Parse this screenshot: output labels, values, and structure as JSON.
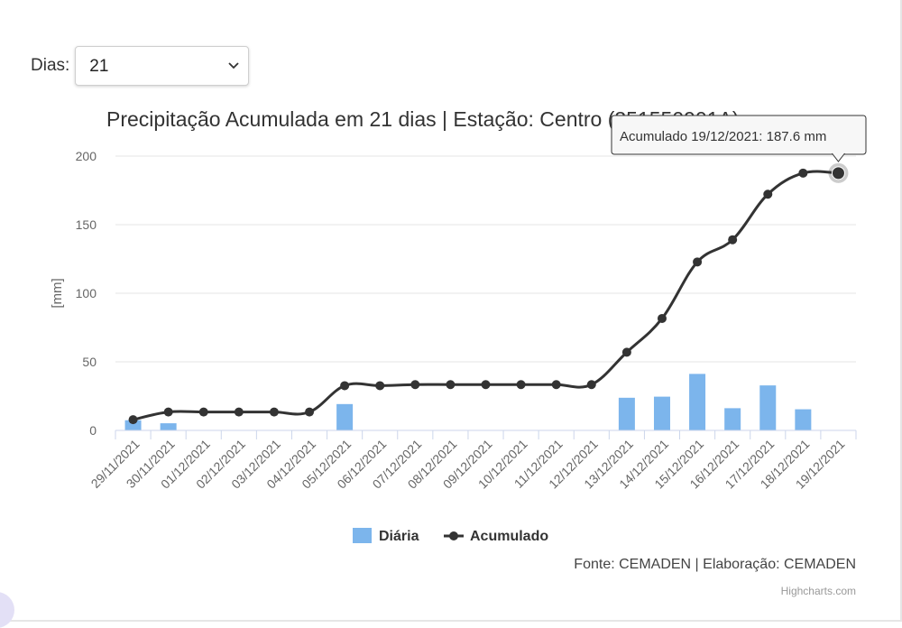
{
  "controls": {
    "days_label": "Dias:",
    "days_value": "21"
  },
  "chart_data": {
    "type": "bar+line",
    "title": "Precipitação Acumulada em 21 dias | Estação: Centro (351550901A)",
    "ylabel": "[mm]",
    "xlabel": "",
    "ylim": [
      0,
      200
    ],
    "yticks": [
      0,
      50,
      100,
      150,
      200
    ],
    "grid": true,
    "legend_position": "bottom-center",
    "categories": [
      "29/11/2021",
      "30/11/2021",
      "01/12/2021",
      "02/12/2021",
      "03/12/2021",
      "04/12/2021",
      "05/12/2021",
      "06/12/2021",
      "07/12/2021",
      "08/12/2021",
      "09/12/2021",
      "10/12/2021",
      "11/12/2021",
      "12/12/2021",
      "13/12/2021",
      "14/12/2021",
      "15/12/2021",
      "16/12/2021",
      "17/12/2021",
      "18/12/2021",
      "19/12/2021"
    ],
    "series": [
      {
        "name": "Diária",
        "type": "bar",
        "color": "#7cb5ec",
        "values": [
          7.4,
          5.2,
          0,
          0,
          0,
          0,
          19.2,
          0,
          0,
          0,
          0,
          0,
          0,
          0,
          23.8,
          24.6,
          41.2,
          16.2,
          32.8,
          15.4,
          0
        ]
      },
      {
        "name": "Acumulado",
        "type": "line",
        "color": "#333333",
        "values": [
          7.8,
          13.4,
          13.4,
          13.4,
          13.4,
          13.4,
          32.6,
          32.6,
          33.4,
          33.4,
          33.4,
          33.4,
          33.4,
          33.4,
          57.0,
          81.6,
          122.8,
          139.0,
          172.2,
          187.6,
          187.6
        ]
      }
    ],
    "tooltip": "Acumulado 19/12/2021: 187.6 mm",
    "source_credit": "Fonte: CEMADEN | Elaboração: CEMADEN",
    "credits": "Highcharts.com"
  }
}
